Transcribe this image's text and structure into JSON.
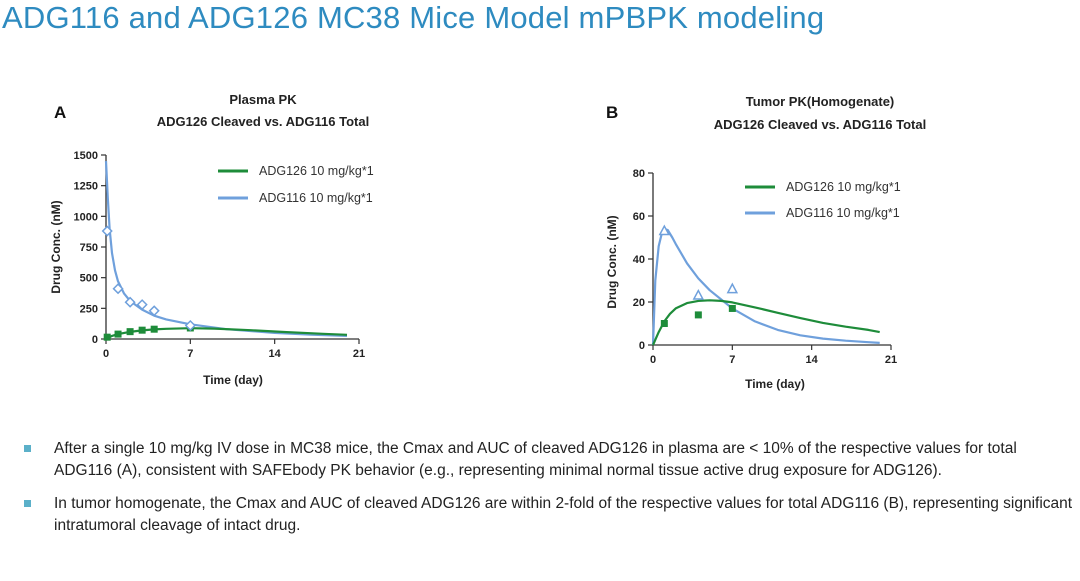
{
  "slide": {
    "title": "ADG116 and ADG126 MC38 Mice Model mPBPK modeling"
  },
  "chart_data": [
    {
      "type": "line",
      "panel": "A",
      "title": [
        "Plasma PK",
        "ADG126 Cleaved vs. ADG116 Total"
      ],
      "xlabel": "Time (day)",
      "ylabel": "Drug Conc. (nM)",
      "xlim": [
        0,
        21
      ],
      "ylim": [
        0,
        1500
      ],
      "xticks": [
        0,
        7,
        14,
        21
      ],
      "yticks": [
        0,
        250,
        500,
        750,
        1000,
        1250,
        1500
      ],
      "legend_position": "top-right",
      "series": [
        {
          "name": "ADG126 10 mg/kg*1",
          "color": "#1e8c3a",
          "marker": "square-filled",
          "line": {
            "x": [
              0,
              0.5,
              1,
              2,
              3,
              4,
              5,
              7,
              9,
              12,
              15,
              18,
              20
            ],
            "y": [
              0,
              25,
              40,
              58,
              70,
              78,
              83,
              88,
              85,
              72,
              56,
              42,
              34
            ]
          },
          "points": {
            "x": [
              0.1,
              1,
              2,
              3,
              4,
              7
            ],
            "y": [
              15,
              40,
              60,
              72,
              80,
              90
            ]
          }
        },
        {
          "name": "ADG116 10 mg/kg*1",
          "color": "#6fa0dc",
          "marker": "diamond-open",
          "line": {
            "x": [
              0,
              0.15,
              0.3,
              0.5,
              0.75,
              1,
              1.5,
              2,
              3,
              4,
              5,
              7,
              10,
              14,
              17,
              20
            ],
            "y": [
              1450,
              1150,
              900,
              700,
              560,
              470,
              370,
              310,
              240,
              190,
              160,
              120,
              80,
              50,
              35,
              25
            ]
          },
          "points": {
            "x": [
              0.1,
              1,
              2,
              3,
              4,
              7
            ],
            "y": [
              880,
              410,
              300,
              280,
              230,
              110
            ]
          }
        }
      ]
    },
    {
      "type": "line",
      "panel": "B",
      "title": [
        "Tumor PK(Homogenate)",
        "ADG126 Cleaved vs. ADG116 Total"
      ],
      "xlabel": "Time (day)",
      "ylabel": "Drug Conc. (nM)",
      "xlim": [
        0,
        21
      ],
      "ylim": [
        0,
        80
      ],
      "xticks": [
        0,
        7,
        14,
        21
      ],
      "yticks": [
        0,
        20,
        40,
        60,
        80
      ],
      "legend_position": "top-right",
      "series": [
        {
          "name": "ADG126 10 mg/kg*1",
          "color": "#1e8c3a",
          "marker": "square-filled",
          "line": {
            "x": [
              0,
              0.5,
              1,
              1.5,
              2,
              3,
              4,
              5,
              6,
              7,
              9,
              11,
              13,
              15,
              17,
              19,
              20
            ],
            "y": [
              0,
              6,
              11,
              14.5,
              17,
              19.5,
              20.5,
              20.8,
              20.5,
              19.8,
              17.5,
              15,
              12.5,
              10.3,
              8.5,
              7,
              6
            ]
          },
          "points": {
            "x": [
              1,
              4,
              7
            ],
            "y": [
              10,
              14,
              17
            ]
          }
        },
        {
          "name": "ADG116 10 mg/kg*1",
          "color": "#6fa0dc",
          "marker": "triangle-open",
          "line": {
            "x": [
              0,
              0.2,
              0.5,
              0.8,
              1,
              1.3,
              1.7,
              2,
              3,
              4,
              5,
              7,
              9,
              11,
              13,
              15,
              17,
              19,
              20
            ],
            "y": [
              0,
              30,
              46,
              52.5,
              54,
              53.5,
              50,
              47,
              38,
              31,
              25.5,
              17,
              11,
              7,
              4.5,
              3,
              2,
              1.3,
              1
            ]
          },
          "points": {
            "x": [
              1,
              4,
              7
            ],
            "y": [
              53,
              23,
              26
            ]
          }
        }
      ]
    }
  ],
  "bullets": [
    "After a single 10 mg/kg IV dose in MC38 mice, the Cmax and AUC of cleaved ADG126 in plasma are < 10% of the respective values for total ADG116 (A), consistent with SAFEbody PK behavior (e.g., representing minimal normal tissue active drug exposure for ADG126).",
    "In tumor homogenate, the Cmax and AUC of cleaved ADG126 are within 2-fold of the respective values for total ADG116 (B), representing significant intratumoral cleavage of intact drug."
  ]
}
